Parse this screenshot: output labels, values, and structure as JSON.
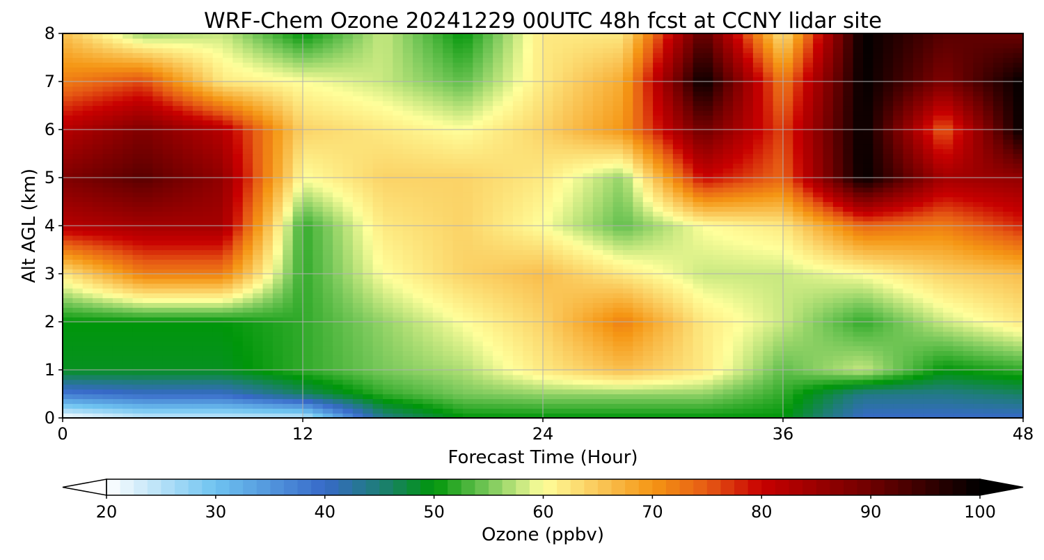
{
  "chart_data": {
    "type": "heatmap",
    "title": "WRF-Chem Ozone  20241229 00UTC 48h fcst at CCNY lidar site",
    "xlabel": "Forecast Time (Hour)",
    "ylabel": "Alt AGL (km)",
    "xlim": [
      0,
      48
    ],
    "ylim": [
      0,
      8
    ],
    "xticks": [
      0,
      12,
      24,
      36,
      48
    ],
    "yticks": [
      0,
      1,
      2,
      3,
      4,
      5,
      6,
      7,
      8
    ],
    "grid": true,
    "x": [
      0,
      4,
      8,
      12,
      16,
      20,
      24,
      28,
      32,
      36,
      40,
      44,
      48
    ],
    "y": [
      0,
      0.5,
      1,
      2,
      3,
      4,
      5,
      6,
      7,
      8
    ],
    "z": [
      [
        20,
        24,
        24,
        24,
        44,
        50,
        50,
        50,
        50,
        50,
        40,
        40,
        40
      ],
      [
        38,
        40,
        40,
        46,
        52,
        55,
        56,
        56,
        56,
        52,
        44,
        44,
        46
      ],
      [
        49,
        49,
        49,
        52,
        55,
        57,
        62,
        66,
        62,
        54,
        58,
        50,
        52
      ],
      [
        50,
        50,
        50,
        52,
        56,
        60,
        64,
        72,
        62,
        58,
        52,
        58,
        62
      ],
      [
        62,
        72,
        72,
        52,
        60,
        64,
        66,
        62,
        58,
        58,
        60,
        64,
        66
      ],
      [
        82,
        84,
        84,
        52,
        62,
        64,
        60,
        54,
        60,
        62,
        74,
        72,
        78
      ],
      [
        88,
        92,
        86,
        60,
        64,
        64,
        62,
        56,
        80,
        74,
        100,
        84,
        86
      ],
      [
        82,
        88,
        82,
        64,
        62,
        60,
        64,
        70,
        90,
        76,
        100,
        74,
        100
      ],
      [
        72,
        76,
        62,
        60,
        58,
        54,
        62,
        68,
        100,
        72,
        100,
        88,
        100
      ],
      [
        66,
        56,
        58,
        50,
        58,
        50,
        62,
        62,
        92,
        62,
        100,
        92,
        90
      ]
    ],
    "colorbar": {
      "label": "Ozone  (ppbv)",
      "min": 20,
      "max": 100,
      "ticks": [
        20,
        30,
        40,
        50,
        60,
        70,
        80,
        90,
        100
      ],
      "extend": "both"
    }
  }
}
